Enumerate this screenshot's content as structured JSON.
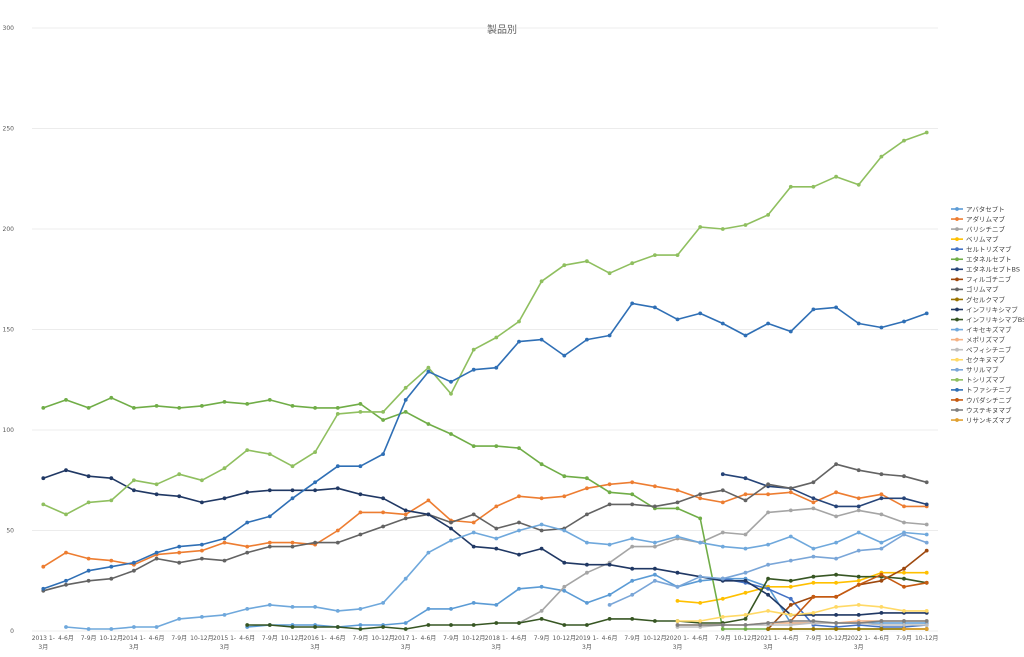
{
  "chart_data": {
    "type": "line",
    "title": "製品別",
    "xlabel": "",
    "ylabel": "",
    "ylim": [
      0,
      300
    ],
    "yticks": [
      0,
      50,
      100,
      150,
      200,
      250,
      300
    ],
    "grid": true,
    "legend_position": "right",
    "categories": [
      "2013 1-3月",
      "4-6月",
      "7-9月",
      "10-12月",
      "2014 1-3月",
      "4-6月",
      "7-9月",
      "10-12月",
      "2015 1-3月",
      "4-6月",
      "7-9月",
      "10-12月",
      "2016 1-3月",
      "4-6月",
      "7-9月",
      "10-12月",
      "2017 1-3月",
      "4-6月",
      "7-9月",
      "10-12月",
      "2018 1-3月",
      "4-6月",
      "7-9月",
      "10-12月",
      "2019 1-3月",
      "4-6月",
      "7-9月",
      "10-12月",
      "2020 1-3月",
      "4-6月",
      "7-9月",
      "10-12月",
      "2021 1-3月",
      "4-6月",
      "7-9月",
      "10-12月",
      "2022 1-3月",
      "4-6月",
      "7-9月",
      "10-12月"
    ],
    "series": [
      {
        "name": "アバタセプト",
        "color": "#5b9bd5",
        "values": [
          null,
          null,
          null,
          null,
          null,
          null,
          null,
          null,
          null,
          2,
          3,
          3,
          3,
          2,
          3,
          3,
          4,
          11,
          11,
          14,
          13,
          21,
          22,
          20,
          14,
          18,
          25,
          28,
          22,
          25,
          26,
          26,
          22,
          4,
          4,
          4,
          4,
          4,
          4,
          4
        ]
      },
      {
        "name": "アダリムマブ",
        "color": "#ed7d31",
        "values": [
          32,
          39,
          36,
          35,
          33,
          38,
          39,
          40,
          44,
          42,
          44,
          44,
          43,
          50,
          59,
          59,
          58,
          65,
          55,
          54,
          62,
          67,
          66,
          67,
          71,
          73,
          74,
          72,
          70,
          66,
          64,
          68,
          68,
          69,
          64,
          69,
          66,
          68,
          62,
          62
        ]
      },
      {
        "name": "バリシチニブ",
        "color": "#a5a5a5",
        "values": [
          null,
          null,
          null,
          null,
          null,
          null,
          null,
          null,
          null,
          null,
          null,
          null,
          null,
          null,
          null,
          null,
          null,
          null,
          null,
          null,
          null,
          4,
          10,
          22,
          29,
          34,
          42,
          42,
          46,
          44,
          49,
          48,
          59,
          60,
          61,
          57,
          60,
          58,
          54,
          53
        ]
      },
      {
        "name": "ベリムマブ",
        "color": "#ffc000",
        "values": [
          null,
          null,
          null,
          null,
          null,
          null,
          null,
          null,
          null,
          null,
          null,
          null,
          null,
          null,
          null,
          null,
          null,
          null,
          null,
          null,
          null,
          null,
          null,
          null,
          null,
          null,
          null,
          null,
          15,
          14,
          16,
          19,
          22,
          22,
          24,
          24,
          25,
          29,
          29,
          29
        ]
      },
      {
        "name": "セルトリズマブ",
        "color": "#4472c4",
        "values": [
          null,
          null,
          null,
          null,
          null,
          null,
          null,
          null,
          null,
          null,
          null,
          null,
          null,
          null,
          null,
          null,
          null,
          null,
          null,
          null,
          null,
          null,
          null,
          null,
          null,
          null,
          null,
          null,
          null,
          null,
          26,
          24,
          21,
          16,
          3,
          2,
          3,
          2,
          2,
          3
        ]
      },
      {
        "name": "エタネルセプト",
        "color": "#70ad47",
        "values": [
          111,
          115,
          111,
          116,
          111,
          112,
          111,
          112,
          114,
          113,
          115,
          112,
          111,
          111,
          113,
          105,
          109,
          103,
          98,
          92,
          92,
          91,
          83,
          77,
          76,
          69,
          68,
          61,
          61,
          56,
          1,
          1,
          1,
          1,
          1,
          1,
          1,
          1,
          1,
          1
        ]
      },
      {
        "name": "エタネルセプトBS",
        "color": "#264478",
        "values": [
          null,
          null,
          null,
          null,
          null,
          null,
          null,
          null,
          null,
          null,
          null,
          null,
          null,
          null,
          null,
          null,
          null,
          null,
          null,
          null,
          null,
          null,
          null,
          null,
          null,
          null,
          null,
          null,
          null,
          null,
          78,
          76,
          72,
          71,
          66,
          62,
          62,
          66,
          66,
          63
        ]
      },
      {
        "name": "フィルゴチニブ",
        "color": "#9e480e",
        "values": [
          null,
          null,
          null,
          null,
          null,
          null,
          null,
          null,
          null,
          null,
          null,
          null,
          null,
          null,
          null,
          null,
          null,
          null,
          null,
          null,
          null,
          null,
          null,
          null,
          null,
          null,
          null,
          null,
          null,
          null,
          null,
          null,
          1,
          13,
          17,
          17,
          23,
          25,
          31,
          40
        ]
      },
      {
        "name": "ゴリムマブ",
        "color": "#636363",
        "values": [
          20,
          23,
          25,
          26,
          30,
          36,
          34,
          36,
          35,
          39,
          42,
          42,
          44,
          44,
          48,
          52,
          56,
          58,
          54,
          58,
          51,
          54,
          50,
          51,
          58,
          63,
          63,
          62,
          64,
          68,
          70,
          65,
          73,
          71,
          74,
          83,
          80,
          78,
          77,
          74
        ]
      },
      {
        "name": "グセルクマブ",
        "color": "#997300",
        "values": [
          null,
          null,
          null,
          null,
          null,
          null,
          null,
          null,
          null,
          null,
          null,
          null,
          null,
          null,
          null,
          null,
          null,
          null,
          null,
          null,
          null,
          null,
          null,
          null,
          null,
          null,
          null,
          null,
          null,
          null,
          null,
          null,
          1,
          1,
          1,
          1,
          1,
          1,
          1,
          1
        ]
      },
      {
        "name": "インフリキシマブ",
        "color": "#203864",
        "values": [
          76,
          80,
          77,
          76,
          70,
          68,
          67,
          64,
          66,
          69,
          70,
          70,
          70,
          71,
          68,
          66,
          60,
          58,
          51,
          42,
          41,
          38,
          41,
          34,
          33,
          33,
          31,
          31,
          29,
          27,
          25,
          25,
          18,
          8,
          8,
          8,
          8,
          9,
          9,
          9
        ]
      },
      {
        "name": "インフリキシマブBS",
        "color": "#375623",
        "values": [
          null,
          null,
          null,
          null,
          null,
          null,
          null,
          null,
          null,
          3,
          3,
          2,
          2,
          2,
          1,
          2,
          1,
          3,
          3,
          3,
          4,
          4,
          6,
          3,
          3,
          6,
          6,
          5,
          5,
          4,
          4,
          6,
          26,
          25,
          27,
          28,
          27,
          27,
          26,
          24
        ]
      },
      {
        "name": "イキセキズマブ",
        "color": "#6fa8dc",
        "values": [
          null,
          2,
          1,
          1,
          2,
          2,
          6,
          7,
          8,
          11,
          13,
          12,
          12,
          10,
          11,
          14,
          26,
          39,
          45,
          49,
          46,
          50,
          53,
          50,
          44,
          43,
          46,
          44,
          47,
          44,
          42,
          41,
          43,
          47,
          41,
          44,
          49,
          44,
          49,
          48
        ]
      },
      {
        "name": "メポリズマブ",
        "color": "#f4b183",
        "values": [
          null,
          null,
          null,
          null,
          null,
          null,
          null,
          null,
          null,
          null,
          null,
          null,
          null,
          null,
          null,
          null,
          null,
          null,
          null,
          null,
          null,
          null,
          null,
          null,
          null,
          null,
          null,
          null,
          3,
          3,
          3,
          3,
          4,
          4,
          4,
          4,
          5,
          5,
          5,
          5
        ]
      },
      {
        "name": "ペフィシチニブ",
        "color": "#bfbfbf",
        "values": [
          null,
          null,
          null,
          null,
          null,
          null,
          null,
          null,
          null,
          null,
          null,
          null,
          null,
          null,
          null,
          null,
          null,
          null,
          null,
          null,
          null,
          null,
          null,
          null,
          null,
          null,
          null,
          null,
          2,
          2,
          3,
          3,
          3,
          3,
          4,
          4,
          4,
          3,
          3,
          3
        ]
      },
      {
        "name": "セクキヌマブ",
        "color": "#ffd966",
        "values": [
          null,
          null,
          null,
          null,
          null,
          null,
          null,
          null,
          null,
          null,
          null,
          null,
          null,
          null,
          null,
          null,
          null,
          null,
          null,
          null,
          null,
          null,
          null,
          null,
          null,
          null,
          null,
          null,
          5,
          5,
          7,
          8,
          10,
          8,
          9,
          12,
          13,
          12,
          10,
          10
        ]
      },
      {
        "name": "サリルマブ",
        "color": "#7aa6d8",
        "values": [
          null,
          null,
          null,
          null,
          null,
          null,
          null,
          null,
          null,
          null,
          null,
          null,
          null,
          null,
          null,
          null,
          null,
          null,
          null,
          null,
          null,
          null,
          null,
          null,
          null,
          13,
          18,
          25,
          22,
          27,
          26,
          29,
          33,
          35,
          37,
          36,
          40,
          41,
          48,
          44
        ]
      },
      {
        "name": "トシリズマブ",
        "color": "#8fbf5f",
        "values": [
          63,
          58,
          64,
          65,
          75,
          73,
          78,
          75,
          81,
          90,
          88,
          82,
          89,
          108,
          109,
          109,
          121,
          131,
          118,
          140,
          146,
          154,
          174,
          182,
          184,
          178,
          183,
          187,
          187,
          201,
          200,
          202,
          207,
          221,
          221,
          226,
          222,
          236,
          244,
          248
        ]
      },
      {
        "name": "トファシチニブ",
        "color": "#2f6fb5",
        "values": [
          21,
          25,
          30,
          32,
          34,
          39,
          42,
          43,
          46,
          54,
          57,
          66,
          74,
          82,
          82,
          88,
          115,
          129,
          124,
          130,
          131,
          144,
          145,
          137,
          145,
          147,
          163,
          161,
          155,
          158,
          153,
          147,
          153,
          149,
          160,
          161,
          153,
          151,
          154,
          158
        ]
      },
      {
        "name": "ウパダシチニブ",
        "color": "#c55a11",
        "values": [
          null,
          null,
          null,
          null,
          null,
          null,
          null,
          null,
          null,
          null,
          null,
          null,
          null,
          null,
          null,
          null,
          null,
          null,
          null,
          null,
          null,
          null,
          null,
          null,
          null,
          null,
          null,
          null,
          null,
          null,
          null,
          null,
          null,
          5,
          17,
          17,
          23,
          28,
          22,
          24
        ]
      },
      {
        "name": "ウステキヌマブ",
        "color": "#7f7f7f",
        "values": [
          null,
          null,
          null,
          null,
          null,
          null,
          null,
          null,
          null,
          null,
          null,
          null,
          null,
          null,
          null,
          null,
          null,
          null,
          null,
          null,
          null,
          null,
          null,
          null,
          null,
          null,
          null,
          null,
          3,
          3,
          3,
          3,
          4,
          5,
          5,
          4,
          4,
          5,
          5,
          5
        ]
      },
      {
        "name": "リサンキズマブ",
        "color": "#e0a030",
        "values": [
          null,
          null,
          null,
          null,
          null,
          null,
          null,
          null,
          null,
          null,
          null,
          null,
          null,
          null,
          null,
          null,
          null,
          null,
          null,
          null,
          null,
          null,
          null,
          null,
          null,
          null,
          null,
          null,
          null,
          null,
          null,
          null,
          null,
          null,
          null,
          null,
          null,
          null,
          1,
          1
        ]
      }
    ]
  }
}
